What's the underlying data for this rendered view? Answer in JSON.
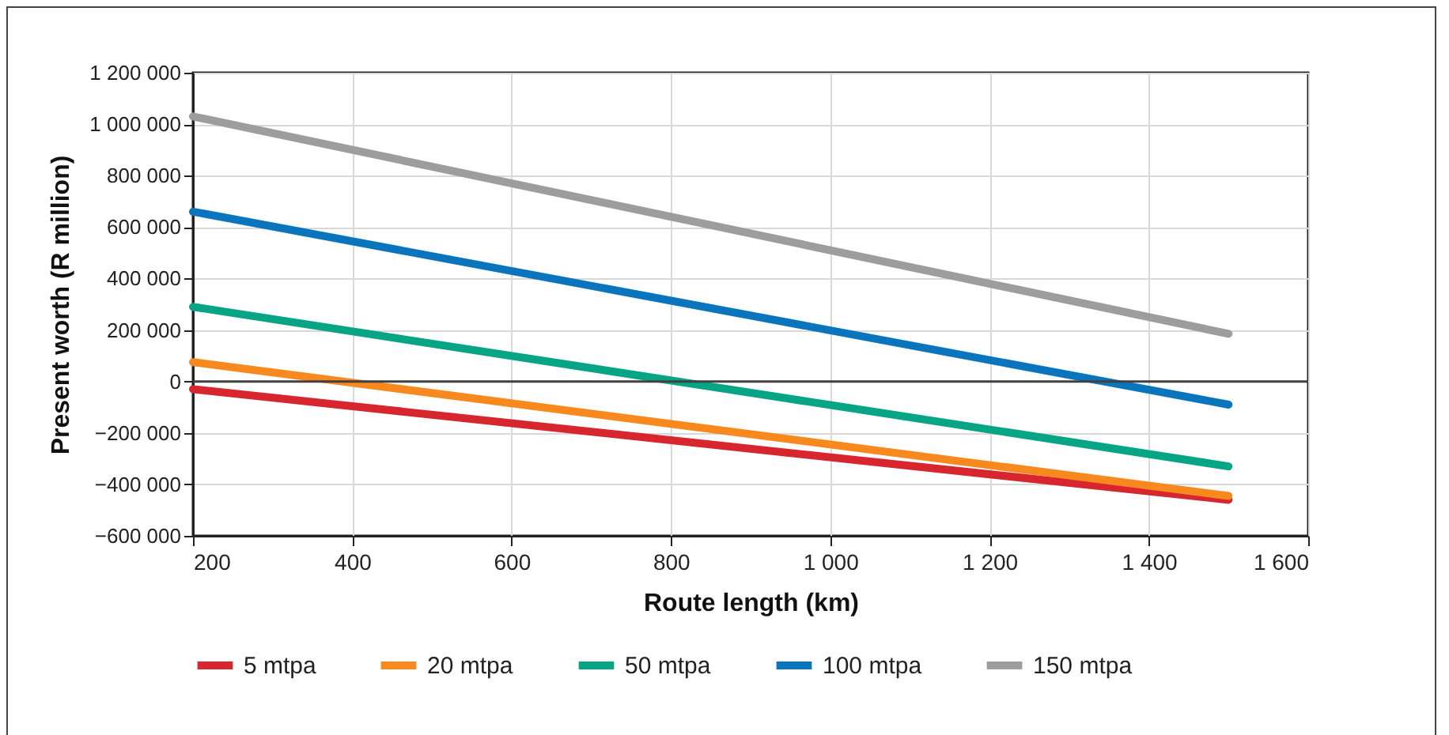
{
  "chart_data": {
    "type": "line",
    "xlabel": "Route length (km)",
    "ylabel": "Present worth (R million)",
    "x": [
      200,
      1500
    ],
    "series": [
      {
        "name": "5 mtpa",
        "color": "#d7262e",
        "values": [
          -30000,
          -460000
        ]
      },
      {
        "name": "20 mtpa",
        "color": "#f7891f",
        "values": [
          75000,
          -445000
        ]
      },
      {
        "name": "50 mtpa",
        "color": "#08a486",
        "values": [
          290000,
          -330000
        ]
      },
      {
        "name": "100 mtpa",
        "color": "#0a75bc",
        "values": [
          660000,
          -90000
        ]
      },
      {
        "name": "150 mtpa",
        "color": "#9d9d9d",
        "values": [
          1030000,
          185000
        ]
      }
    ],
    "xlim": [
      200,
      1600
    ],
    "xticks": [
      200,
      400,
      600,
      800,
      {
        "value": 1000,
        "label": "1 000"
      },
      {
        "value": 1200,
        "label": "1 200"
      },
      {
        "value": 1400,
        "label": "1 400"
      },
      {
        "value": 1600,
        "label": "1 600"
      }
    ],
    "ylim": [
      -600000,
      1200000
    ],
    "yticks": [
      {
        "value": -600000,
        "label": "−600 000"
      },
      {
        "value": -400000,
        "label": "−400 000"
      },
      {
        "value": -200000,
        "label": "−200 000"
      },
      0,
      {
        "value": 200000,
        "label": "200 000"
      },
      {
        "value": 400000,
        "label": "400 000"
      },
      {
        "value": 600000,
        "label": "600 000"
      },
      {
        "value": 800000,
        "label": "800 000"
      },
      {
        "value": 1000000,
        "label": "1 000 000"
      },
      {
        "value": 1200000,
        "label": "1 200 000"
      }
    ],
    "ref_lines": [
      {
        "axis": "y",
        "value": 0,
        "color": "#404040"
      }
    ],
    "grid": true,
    "legend": "bottom",
    "marker": "none",
    "line_style": "solid"
  }
}
